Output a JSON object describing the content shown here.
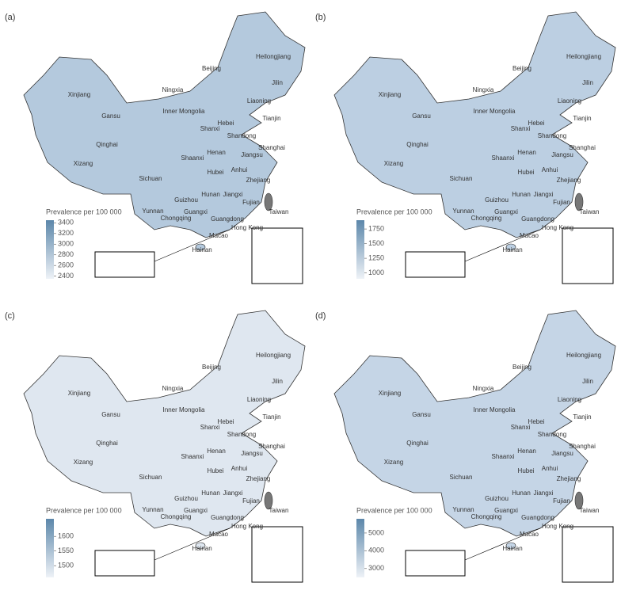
{
  "panels": [
    {
      "label": "(a)",
      "legend": {
        "title": "Prevalence per 100 000",
        "lim": [
          2350,
          3450
        ],
        "ticks": [
          2400,
          2600,
          2800,
          3000,
          3200,
          3400
        ]
      }
    },
    {
      "label": "(b)",
      "legend": {
        "title": "Prevalence per 100 000",
        "lim": [
          900,
          1900
        ],
        "ticks": [
          1000,
          1250,
          1500,
          1750
        ]
      }
    },
    {
      "label": "(c)",
      "legend": {
        "title": "Prevalence per 100 000",
        "lim": [
          1460,
          1660
        ],
        "ticks": [
          1500,
          1550,
          1600
        ]
      }
    },
    {
      "label": "(d)",
      "legend": {
        "title": "Prevalence per 100 000",
        "lim": [
          2500,
          5800
        ],
        "ticks": [
          3000,
          4000,
          5000
        ]
      }
    }
  ],
  "regions": [
    "Xinjiang",
    "Xizang",
    "Qinghai",
    "Gansu",
    "Ningxia",
    "Inner Mongolia",
    "Heilongjiang",
    "Jilin",
    "Liaoning",
    "Beijing",
    "Tianjin",
    "Hebei",
    "Shanxi",
    "Shandong",
    "Henan",
    "Shaanxi",
    "Sichuan",
    "Chongqing",
    "Yunnan",
    "Guizhou",
    "Guangxi",
    "Hunan",
    "Hubei",
    "Anhui",
    "Jiangsu",
    "Shanghai",
    "Zhejiang",
    "Jiangxi",
    "Fujian",
    "Guangdong",
    "Hong Kong",
    "Macao",
    "Hainan",
    "Taiwan"
  ]
}
